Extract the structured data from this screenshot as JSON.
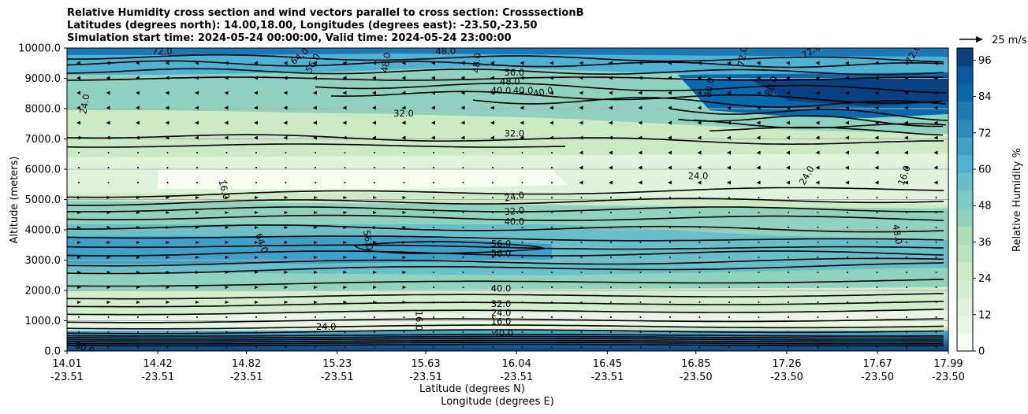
{
  "chart_data": {
    "type": "heatmap",
    "title_lines": [
      "Relative Humidity cross section and wind vectors parallel to cross section: CrosssectionB",
      "Latitudes (degrees north): 14.00,18.00, Longitudes (degrees east): -23.50,-23.50",
      "Simulation start time: 2024-05-24 00:00:00, Valid time: 2024-05-24 23:00:00"
    ],
    "ylabel": "Altitude (meters)",
    "xlabel_lines": [
      "Latitude (degrees N)",
      "Longitude (degrees E)"
    ],
    "yticks": [
      "0.0",
      "1000.0",
      "2000.0",
      "3000.0",
      "4000.0",
      "5000.0",
      "6000.0",
      "7000.0",
      "8000.0",
      "9000.0",
      "10000.0"
    ],
    "ylim": [
      0,
      10000
    ],
    "xticks_lat": [
      "14.01",
      "14.42",
      "14.82",
      "15.23",
      "15.63",
      "16.04",
      "16.45",
      "16.85",
      "17.26",
      "17.67",
      "17.99"
    ],
    "xticks_lon": [
      "-23.51",
      "-23.51",
      "-23.51",
      "-23.51",
      "-23.51",
      "-23.51",
      "-23.51",
      "-23.50",
      "-23.50",
      "-23.50",
      "-23.50"
    ],
    "xlim": [
      14.01,
      17.99
    ],
    "grid": "horizontal",
    "colorbar": {
      "label": "Relative Humidity %",
      "ticks": [
        "0",
        "12",
        "24",
        "36",
        "48",
        "60",
        "72",
        "84",
        "96"
      ],
      "range": [
        0,
        100
      ],
      "colors": [
        "#f7fcf0",
        "#e9f6e3",
        "#e0f3db",
        "#d3eecd",
        "#ccebc5",
        "#b8e3bd",
        "#a8ddb5",
        "#8fd3bf",
        "#7bccc4",
        "#67c0c9",
        "#4eb3d3",
        "#3ea1ca",
        "#2b8cbe",
        "#1c79b5",
        "#0868ac",
        "#0a58a0",
        "#084081"
      ]
    },
    "quiver_key": "25 m/s",
    "contour_labels": [
      {
        "text": "72.0",
        "x": 14.44,
        "z": 9900,
        "rot": 0
      },
      {
        "text": "64.0",
        "x": 15.06,
        "z": 9730,
        "rot": -40
      },
      {
        "text": "56.0",
        "x": 15.12,
        "z": 9500,
        "rot": -60
      },
      {
        "text": "48.0",
        "x": 15.45,
        "z": 9520,
        "rot": -80
      },
      {
        "text": "48.0",
        "x": 15.86,
        "z": 9510,
        "rot": -85
      },
      {
        "text": "48.0",
        "x": 15.72,
        "z": 9900,
        "rot": 0
      },
      {
        "text": "56.0",
        "x": 16.03,
        "z": 9200,
        "rot": 0
      },
      {
        "text": "48.0",
        "x": 16.01,
        "z": 8900,
        "rot": 0
      },
      {
        "text": "40.0",
        "x": 15.97,
        "z": 8600,
        "rot": 0
      },
      {
        "text": "40.0",
        "x": 16.07,
        "z": 8600,
        "rot": 0
      },
      {
        "text": "40.0",
        "x": 16.16,
        "z": 8550,
        "rot": -10
      },
      {
        "text": "72.0",
        "x": 17.06,
        "z": 9730,
        "rot": -80
      },
      {
        "text": "72.0",
        "x": 17.37,
        "z": 9900,
        "rot": -30
      },
      {
        "text": "72.0",
        "x": 17.83,
        "z": 9800,
        "rot": -60
      },
      {
        "text": "80.0",
        "x": 16.91,
        "z": 8700,
        "rot": -80
      },
      {
        "text": "80.0",
        "x": 17.19,
        "z": 8750,
        "rot": -70
      },
      {
        "text": "24.0",
        "x": 14.09,
        "z": 8150,
        "rot": -80
      },
      {
        "text": "32.0",
        "x": 15.53,
        "z": 7850,
        "rot": 0
      },
      {
        "text": "32.0",
        "x": 16.03,
        "z": 7180,
        "rot": 0
      },
      {
        "text": "24.0",
        "x": 16.86,
        "z": 5780,
        "rot": 0
      },
      {
        "text": "24.0",
        "x": 17.35,
        "z": 5800,
        "rot": -60
      },
      {
        "text": "16.0",
        "x": 17.79,
        "z": 5800,
        "rot": -70
      },
      {
        "text": "16.0",
        "x": 14.72,
        "z": 5330,
        "rot": 75
      },
      {
        "text": "24.0",
        "x": 16.03,
        "z": 5100,
        "rot": -10
      },
      {
        "text": "32.0",
        "x": 16.03,
        "z": 4620,
        "rot": -5
      },
      {
        "text": "40.0",
        "x": 16.03,
        "z": 4270,
        "rot": 0
      },
      {
        "text": "48.0",
        "x": 17.76,
        "z": 3850,
        "rot": 80
      },
      {
        "text": "64.0",
        "x": 14.89,
        "z": 3560,
        "rot": 70
      },
      {
        "text": "56.0",
        "x": 15.37,
        "z": 3660,
        "rot": 80
      },
      {
        "text": "56.0",
        "x": 15.97,
        "z": 3550,
        "rot": 0
      },
      {
        "text": "56.0",
        "x": 15.97,
        "z": 3220,
        "rot": 0
      },
      {
        "text": "40.0",
        "x": 15.97,
        "z": 2060,
        "rot": 0
      },
      {
        "text": "32.0",
        "x": 15.97,
        "z": 1560,
        "rot": 0
      },
      {
        "text": "24.0",
        "x": 15.97,
        "z": 1260,
        "rot": 0
      },
      {
        "text": "16.0",
        "x": 15.97,
        "z": 980,
        "rot": 0
      },
      {
        "text": "16.0",
        "x": 15.6,
        "z": 1000,
        "rot": 90
      },
      {
        "text": "24.0",
        "x": 15.18,
        "z": 800,
        "rot": 0
      },
      {
        "text": "40.0",
        "x": 15.98,
        "z": 580,
        "rot": 0
      },
      {
        "text": "80.0",
        "x": 14.09,
        "z": 100,
        "rot": 20
      }
    ]
  }
}
